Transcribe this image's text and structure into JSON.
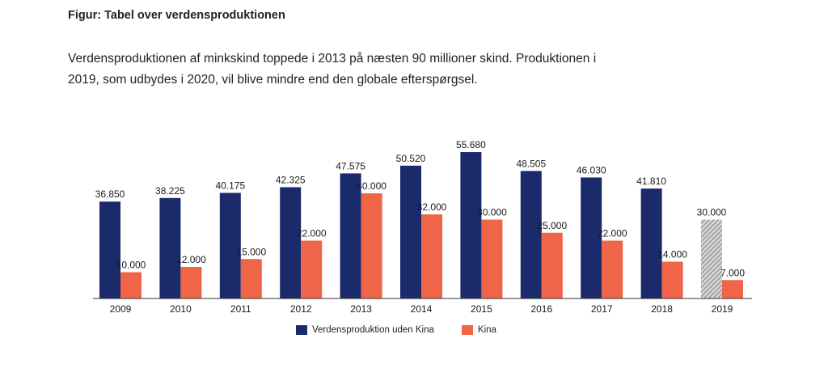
{
  "figure": {
    "heading": "Figur: Tabel over verdensproduktionen",
    "intro_line1": "Verdensproduktionen af minkskind toppede i 2013 på næsten 90 millioner skind. Produktionen i",
    "intro_line2": "2019, som udbydes i 2020, vil blive mindre end den globale efterspørgsel."
  },
  "colors": {
    "navy": "#1b2a6b",
    "orange": "#f06448",
    "hatched": "#9a9a9a"
  },
  "chart_data": {
    "type": "bar",
    "title": "",
    "xlabel": "",
    "ylabel": "",
    "ylim": [
      0,
      60000
    ],
    "grid": false,
    "legend_position": "bottom",
    "categories": [
      "2009",
      "2010",
      "2011",
      "2012",
      "2013",
      "2014",
      "2015",
      "2016",
      "2017",
      "2018",
      "2019"
    ],
    "series": [
      {
        "name": "Verdensproduktion uden Kina",
        "values": [
          36850,
          38225,
          40175,
          42325,
          47575,
          50520,
          55680,
          48505,
          46030,
          41810,
          30000
        ],
        "labels": [
          "36.850",
          "38.225",
          "40.175",
          "42.325",
          "47.575",
          "50.520",
          "55.680",
          "48.505",
          "46.030",
          "41.810",
          "30.000"
        ],
        "estimated_last": true
      },
      {
        "name": "Kina",
        "values": [
          10000,
          12000,
          15000,
          22000,
          40000,
          32000,
          30000,
          25000,
          22000,
          14000,
          7000
        ],
        "labels": [
          "10.000",
          "12.000",
          "15.000",
          "22.000",
          "40.000",
          "32.000",
          "30.000",
          "25.000",
          "22.000",
          "14.000",
          "7.000"
        ]
      }
    ]
  }
}
